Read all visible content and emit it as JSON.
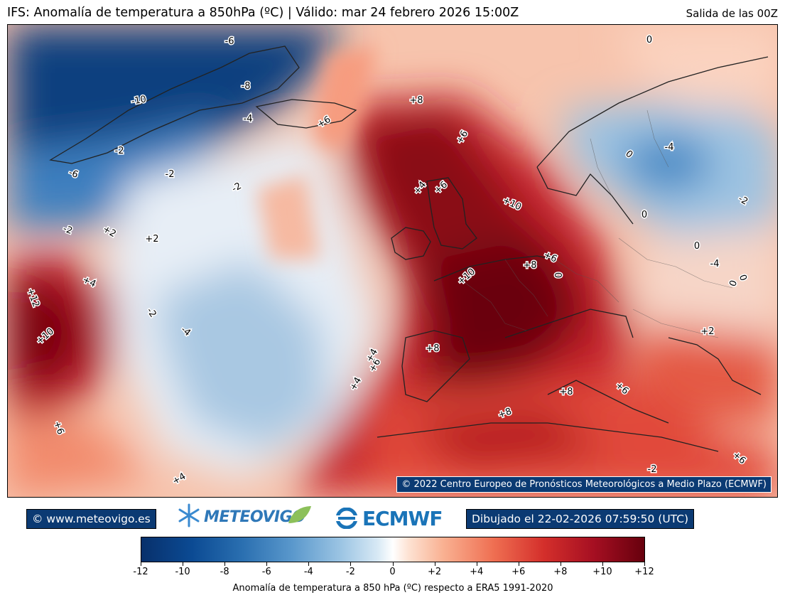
{
  "header": {
    "title": "IFS: Anomalía de temperatura a 850hPa  (ºC) | Válido: mar 24 febrero 2026 15:00Z",
    "run": "Salida de las 00Z"
  },
  "map": {
    "copyright": "© 2022 Centro Europeo de Pronósticos Meteorológicos a Medio Plazo (ECMWF)",
    "contour_labels": [
      "-6",
      "-8",
      "-10",
      "-4",
      "-2",
      "-6",
      "-2",
      "-2",
      "-2",
      "+2",
      "+2",
      "+4",
      "+12",
      "+10",
      "-2",
      "-4",
      "+6",
      "+4",
      "+4",
      "+8",
      "+6",
      "+6",
      "+4",
      "+10",
      "+6",
      "+8",
      "+6",
      "+10",
      "+8",
      "+6",
      "+4",
      "0",
      "+8",
      "+8",
      "+6",
      "0",
      "0",
      "-4",
      "-4",
      "0",
      "-2",
      "0",
      "0",
      "+2",
      "+6",
      "-2",
      "0"
    ]
  },
  "footer": {
    "site": "© www.meteovigo.es",
    "meteovigo_logo": "METEOVIGO",
    "ecmwf_logo": "ECMWF",
    "drawn": "Dibujado el 22-02-2026 07:59:50 (UTC)"
  },
  "colorbar": {
    "ticks": [
      "-12",
      "-10",
      "-8",
      "-6",
      "-4",
      "-2",
      "0",
      "+2",
      "+4",
      "+6",
      "+8",
      "+10",
      "+12"
    ],
    "label": "Anomalía de temperatura a 850 hPa (ºC) respecto a ERA5 1991-2020"
  }
}
